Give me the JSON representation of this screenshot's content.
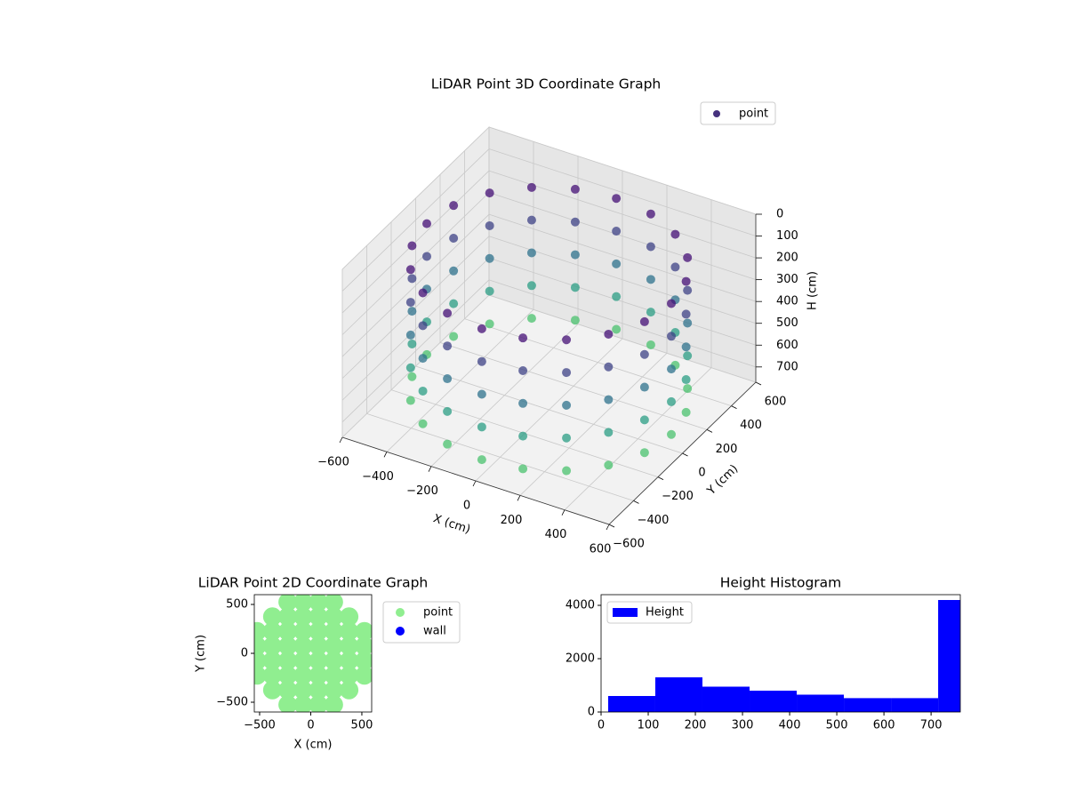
{
  "chart_data": [
    {
      "type": "scatter3d",
      "title": "LiDAR Point 3D Coordinate Graph",
      "xlabel": "X (cm)",
      "ylabel": "Y (cm)",
      "zlabel": "H (cm)",
      "xlim": [
        -600,
        600
      ],
      "ylim": [
        -600,
        600
      ],
      "zlim": [
        0,
        770
      ],
      "z_inverted": true,
      "xticks": [
        {
          "value": -600,
          "label": "−600"
        },
        {
          "value": -400,
          "label": "−400"
        },
        {
          "value": -200,
          "label": "−200"
        },
        0,
        200,
        400,
        600
      ],
      "yticks": [
        {
          "value": -600,
          "label": "−600"
        },
        {
          "value": -400,
          "label": "−400"
        },
        {
          "value": -200,
          "label": "−200"
        },
        0,
        200,
        400,
        600
      ],
      "zticks": [
        0,
        100,
        200,
        300,
        400,
        500,
        600,
        700
      ],
      "grid": true,
      "legend": "upper right",
      "series": [
        {
          "name": "point",
          "color": "#46327e",
          "cmap": [
            "#440f76",
            "#3b528b",
            "#21918c",
            "#4ac16d"
          ],
          "x": [
            550,
            550,
            550,
            550,
            550,
            523,
            523,
            523,
            523,
            523,
            445,
            445,
            445,
            445,
            445,
            323,
            323,
            323,
            323,
            323,
            170,
            170,
            170,
            170,
            170,
            0,
            0,
            0,
            0,
            0,
            -170,
            -170,
            -170,
            -170,
            -170,
            -323,
            -323,
            -323,
            -323,
            -323,
            -445,
            -445,
            -445,
            -445,
            -445,
            -523,
            -523,
            -523,
            -523,
            -523,
            -550,
            -550,
            -550,
            -550,
            -550,
            -523,
            -523,
            -523,
            -523,
            -523,
            -445,
            -445,
            -445,
            -445,
            -445,
            -323,
            -323,
            -323,
            -323,
            -323,
            -170,
            -170,
            -170,
            -170,
            -170,
            0,
            0,
            0,
            0,
            0,
            170,
            170,
            170,
            170,
            170,
            323,
            323,
            323,
            323,
            323,
            445,
            445,
            445,
            445,
            445,
            523,
            523,
            523,
            523,
            523
          ],
          "y": [
            0,
            0,
            0,
            0,
            0,
            170,
            170,
            170,
            170,
            170,
            323,
            323,
            323,
            323,
            323,
            445,
            445,
            445,
            445,
            445,
            523,
            523,
            523,
            523,
            523,
            550,
            550,
            550,
            550,
            550,
            523,
            523,
            523,
            523,
            523,
            445,
            445,
            445,
            445,
            445,
            323,
            323,
            323,
            323,
            323,
            170,
            170,
            170,
            170,
            170,
            0,
            0,
            0,
            0,
            0,
            -170,
            -170,
            -170,
            -170,
            -170,
            -323,
            -323,
            -323,
            -323,
            -323,
            -445,
            -445,
            -445,
            -445,
            -445,
            -523,
            -523,
            -523,
            -523,
            -523,
            -550,
            -550,
            -550,
            -550,
            -550,
            -523,
            -523,
            -523,
            -523,
            -523,
            -445,
            -445,
            -445,
            -445,
            -445,
            -323,
            -323,
            -323,
            -323,
            -323,
            -170,
            -170,
            -170,
            -170,
            -170
          ],
          "z": [
            100,
            250,
            400,
            550,
            700,
            100,
            250,
            400,
            550,
            700,
            100,
            250,
            400,
            550,
            700,
            100,
            250,
            400,
            550,
            700,
            100,
            250,
            400,
            550,
            700,
            100,
            250,
            400,
            550,
            700,
            100,
            250,
            400,
            550,
            700,
            100,
            250,
            400,
            550,
            700,
            100,
            250,
            400,
            550,
            700,
            100,
            250,
            400,
            550,
            700,
            100,
            250,
            400,
            550,
            700,
            100,
            250,
            400,
            550,
            700,
            100,
            250,
            400,
            550,
            700,
            100,
            250,
            400,
            550,
            700,
            100,
            250,
            400,
            550,
            700,
            100,
            250,
            400,
            550,
            700,
            100,
            250,
            400,
            550,
            700,
            100,
            250,
            400,
            550,
            700,
            100,
            250,
            400,
            550,
            700,
            100,
            250,
            400,
            550,
            700
          ]
        }
      ]
    },
    {
      "type": "scatter",
      "title": "LiDAR Point 2D Coordinate Graph",
      "xlabel": "X (cm)",
      "ylabel": "Y (cm)",
      "xlim": [
        -552,
        596
      ],
      "ylim": [
        -600,
        600
      ],
      "xticks": [
        {
          "value": -500,
          "label": "−500"
        },
        0,
        500
      ],
      "yticks": [
        {
          "value": -500,
          "label": "−500"
        },
        0,
        500
      ],
      "legend": "outside right",
      "series": [
        {
          "name": "point",
          "color": "#90ee90",
          "x": [
            -225,
            -75,
            75,
            225,
            -375,
            -225,
            -75,
            75,
            225,
            375,
            -525,
            -375,
            -225,
            -75,
            75,
            225,
            375,
            525,
            -525,
            -375,
            -225,
            -75,
            75,
            225,
            375,
            525,
            -525,
            -375,
            -225,
            -75,
            75,
            225,
            375,
            525,
            -525,
            -375,
            -225,
            -75,
            75,
            225,
            375,
            525,
            -375,
            -225,
            -75,
            75,
            225,
            375,
            -225,
            -75,
            75,
            225
          ],
          "y": [
            -525,
            -525,
            -525,
            -525,
            -375,
            -375,
            -375,
            -375,
            -375,
            -375,
            -225,
            -225,
            -225,
            -225,
            -225,
            -225,
            -225,
            -225,
            -75,
            -75,
            -75,
            -75,
            -75,
            -75,
            -75,
            -75,
            75,
            75,
            75,
            75,
            75,
            75,
            75,
            75,
            225,
            225,
            225,
            225,
            225,
            225,
            225,
            225,
            375,
            375,
            375,
            375,
            375,
            375,
            525,
            525,
            525,
            525
          ]
        },
        {
          "name": "wall",
          "color": "#0000ff",
          "x": [],
          "y": []
        }
      ]
    },
    {
      "type": "histogram",
      "title": "Height Histogram",
      "bins": [
        15,
        115,
        215,
        315,
        415,
        515,
        615,
        715,
        762
      ],
      "values": [
        600,
        1300,
        950,
        800,
        650,
        520,
        520,
        4200
      ],
      "name": "Height",
      "color": "#0000ff",
      "xlim": [
        0,
        762
      ],
      "ylim": [
        0,
        4400
      ],
      "xticks": [
        0,
        100,
        200,
        300,
        400,
        500,
        600,
        700
      ],
      "yticks": [
        0,
        2000,
        4000
      ],
      "legend": "upper left"
    }
  ]
}
